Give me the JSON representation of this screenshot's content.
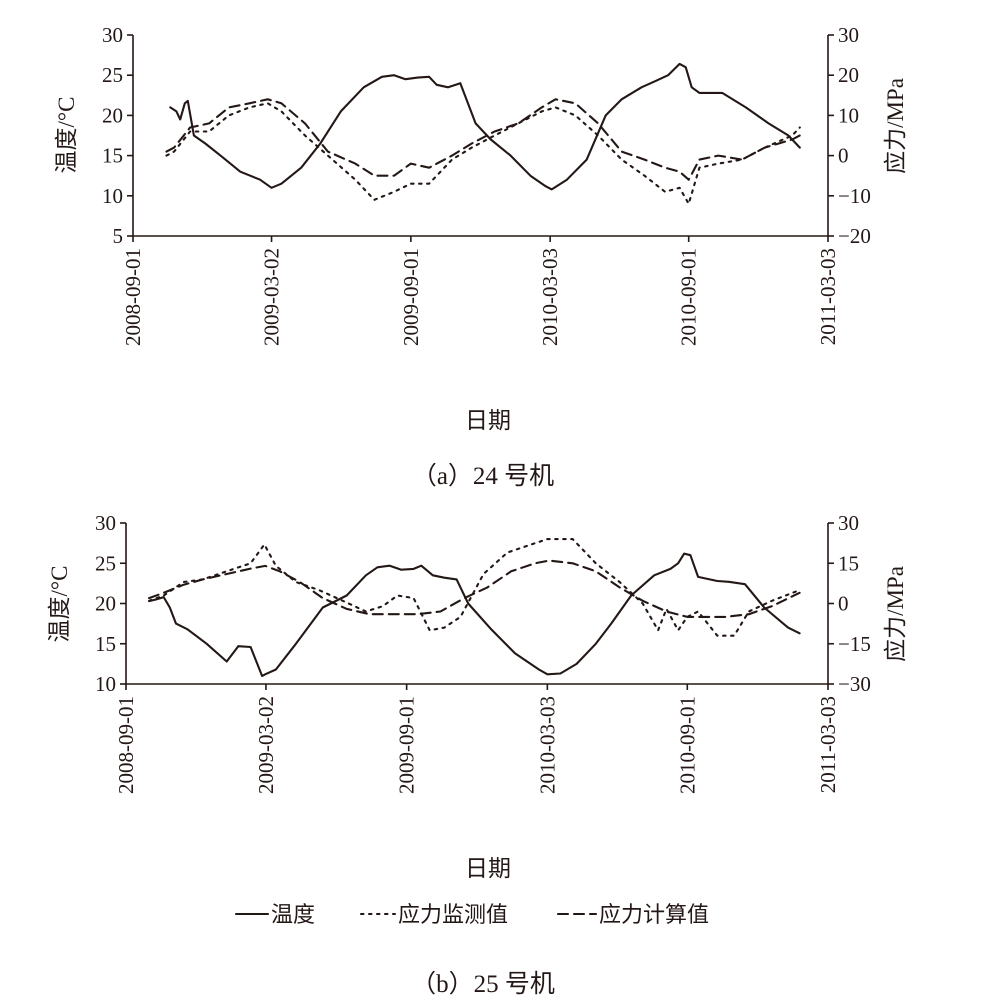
{
  "captions": [
    "（a）24 号机",
    "（b）25 号机"
  ],
  "legend": [
    {
      "label": "温度",
      "series": "temperature"
    },
    {
      "label": "应力监测值",
      "series": "stress_monitored"
    },
    {
      "label": "应力计算值",
      "series": "stress_calculated"
    }
  ],
  "styles": {
    "line_color": "#231815",
    "background": "#ffffff"
  },
  "chart_data": [
    {
      "type": "line",
      "caption": "（a）24 号机",
      "xlabel": "日期",
      "ylabel_left": "温度/°C",
      "ylabel_right": "应力/MPa",
      "x_ticks": [
        "2008-09-01",
        "2009-03-02",
        "2009-09-01",
        "2010-03-03",
        "2010-09-01",
        "2011-03-03"
      ],
      "xlim": [
        "2008-09-01",
        "2011-03-03"
      ],
      "ylim_left": [
        5,
        30
      ],
      "y_ticks_left": [
        5,
        10,
        15,
        20,
        25,
        30
      ],
      "ylim_right": [
        -20,
        30
      ],
      "y_ticks_right": [
        -20,
        -10,
        0,
        10,
        20,
        30
      ],
      "series": [
        {
          "key": "temperature",
          "name": "温度",
          "axis": "left",
          "style": "solid",
          "x": [
            "2008-10-20",
            "2008-10-28",
            "2008-11-02",
            "2008-11-08",
            "2008-11-12",
            "2008-11-20",
            "2008-12-05",
            "2008-12-25",
            "2009-01-20",
            "2009-02-15",
            "2009-03-02",
            "2009-03-15",
            "2009-04-10",
            "2009-05-05",
            "2009-06-01",
            "2009-07-01",
            "2009-07-25",
            "2009-08-10",
            "2009-08-25",
            "2009-09-10",
            "2009-09-25",
            "2009-10-05",
            "2009-10-20",
            "2009-11-05",
            "2009-11-25",
            "2009-12-15",
            "2010-01-10",
            "2010-02-05",
            "2010-02-25",
            "2010-03-05",
            "2010-03-25",
            "2010-04-20",
            "2010-05-15",
            "2010-06-05",
            "2010-07-01",
            "2010-07-20",
            "2010-08-05",
            "2010-08-20",
            "2010-08-28",
            "2010-09-05",
            "2010-09-15",
            "2010-10-15",
            "2010-11-15",
            "2010-12-15",
            "2011-01-10",
            "2011-01-25"
          ],
          "values": [
            21,
            20.5,
            19.5,
            21.5,
            21.8,
            17.5,
            16.5,
            15,
            13,
            12,
            11,
            11.5,
            13.5,
            16.5,
            20.5,
            23.5,
            24.8,
            25,
            24.5,
            24.7,
            24.8,
            23.8,
            23.5,
            24,
            19,
            17,
            15,
            12.5,
            11.2,
            10.8,
            12,
            14.5,
            20,
            22,
            23.5,
            24.3,
            25,
            26.4,
            26,
            23.5,
            22.8,
            22.8,
            21,
            19,
            17.5,
            16
          ],
          "annotations": []
        },
        {
          "key": "stress_monitored",
          "name": "应力监测值",
          "axis": "right",
          "style": "dotted",
          "x": [
            "2008-10-15",
            "2008-10-25",
            "2008-11-15",
            "2008-12-10",
            "2009-01-05",
            "2009-02-01",
            "2009-02-25",
            "2009-03-15",
            "2009-04-15",
            "2009-05-15",
            "2009-06-20",
            "2009-07-15",
            "2009-08-10",
            "2009-09-01",
            "2009-09-25",
            "2009-10-25",
            "2009-11-20",
            "2009-12-20",
            "2010-01-20",
            "2010-02-20",
            "2010-03-10",
            "2010-04-05",
            "2010-05-05",
            "2010-06-05",
            "2010-07-05",
            "2010-08-01",
            "2010-08-20",
            "2010-09-01",
            "2010-09-15",
            "2010-10-10",
            "2010-11-10",
            "2010-12-10",
            "2011-01-15",
            "2011-01-25"
          ],
          "values": [
            0,
            1,
            6,
            6,
            10,
            12,
            13,
            11,
            5,
            0,
            -6,
            -11,
            -9,
            -7,
            -7,
            -1,
            2,
            5,
            8,
            11,
            12,
            10,
            5,
            -1,
            -5,
            -9,
            -8,
            -12,
            -3,
            -2,
            -1,
            2,
            5,
            7
          ],
          "annotations": []
        },
        {
          "key": "stress_calculated",
          "name": "应力计算值",
          "axis": "right",
          "style": "dashed",
          "x": [
            "2008-10-15",
            "2008-10-25",
            "2008-11-15",
            "2008-12-10",
            "2009-01-05",
            "2009-02-01",
            "2009-02-25",
            "2009-03-15",
            "2009-04-15",
            "2009-05-15",
            "2009-06-20",
            "2009-07-15",
            "2009-08-10",
            "2009-09-01",
            "2009-09-25",
            "2009-10-25",
            "2009-11-20",
            "2009-12-20",
            "2010-01-20",
            "2010-02-20",
            "2010-03-10",
            "2010-04-05",
            "2010-05-05",
            "2010-06-05",
            "2010-07-05",
            "2010-08-01",
            "2010-08-20",
            "2010-09-01",
            "2010-09-15",
            "2010-10-10",
            "2010-11-10",
            "2010-12-10",
            "2011-01-15",
            "2011-01-25"
          ],
          "values": [
            1,
            2,
            7,
            8,
            12,
            13,
            14,
            13,
            8,
            1,
            -2,
            -5,
            -5,
            -2,
            -3,
            0,
            3,
            6,
            8,
            12,
            14,
            13,
            8,
            1,
            -1,
            -3,
            -4,
            -6,
            -1,
            0,
            -1,
            2,
            4,
            5
          ],
          "annotations": []
        }
      ]
    },
    {
      "type": "line",
      "caption": "（b）25 号机",
      "xlabel": "日期",
      "ylabel_left": "温度/°C",
      "ylabel_right": "应力/MPa",
      "x_ticks": [
        "2008-09-01",
        "2009-03-02",
        "2009-09-01",
        "2010-03-03",
        "2010-09-01",
        "2011-03-03"
      ],
      "xlim": [
        "2008-09-01",
        "2011-03-03"
      ],
      "ylim_left": [
        10,
        30
      ],
      "y_ticks_left": [
        10,
        15,
        20,
        25,
        30
      ],
      "ylim_right": [
        -30,
        30
      ],
      "y_ticks_right": [
        -30,
        -15,
        0,
        15,
        30
      ],
      "series": [
        {
          "key": "temperature",
          "name": "温度",
          "axis": "left",
          "style": "solid",
          "x": [
            "2008-10-01",
            "2008-10-10",
            "2008-10-20",
            "2008-10-28",
            "2008-11-05",
            "2008-11-20",
            "2008-12-15",
            "2009-01-10",
            "2009-01-25",
            "2009-02-10",
            "2009-02-25",
            "2009-03-01",
            "2009-03-15",
            "2009-04-10",
            "2009-05-15",
            "2009-06-15",
            "2009-07-10",
            "2009-07-25",
            "2009-08-10",
            "2009-08-25",
            "2009-09-10",
            "2009-09-20",
            "2009-10-05",
            "2009-10-20",
            "2009-11-05",
            "2009-11-20",
            "2009-12-20",
            "2010-01-20",
            "2010-02-20",
            "2010-03-03",
            "2010-03-20",
            "2010-04-10",
            "2010-05-05",
            "2010-05-25",
            "2010-06-20",
            "2010-07-20",
            "2010-08-10",
            "2010-08-20",
            "2010-08-28",
            "2010-09-05",
            "2010-09-15",
            "2010-10-10",
            "2010-10-25",
            "2010-11-15",
            "2010-12-10",
            "2011-01-10",
            "2011-01-25"
          ],
          "values": [
            20.3,
            20.5,
            20.8,
            19.5,
            17.5,
            16.8,
            15,
            12.8,
            14.7,
            14.6,
            11,
            11.2,
            11.8,
            15,
            19.5,
            21,
            23.5,
            24.5,
            24.7,
            24.2,
            24.3,
            24.7,
            23.5,
            23.2,
            23,
            20,
            16.8,
            13.8,
            11.8,
            11.2,
            11.3,
            12.5,
            15,
            17.5,
            21,
            23.5,
            24.3,
            25,
            26.2,
            26,
            23.3,
            22.8,
            22.7,
            22.4,
            19.5,
            17,
            16.3
          ],
          "annotations": []
        },
        {
          "key": "stress_monitored",
          "name": "应力监测值",
          "axis": "right",
          "style": "dotted",
          "x": [
            "2008-10-01",
            "2008-10-20",
            "2008-11-15",
            "2008-12-10",
            "2009-01-10",
            "2009-02-10",
            "2009-02-28",
            "2009-03-15",
            "2009-04-10",
            "2009-05-10",
            "2009-06-10",
            "2009-07-10",
            "2009-08-01",
            "2009-08-20",
            "2009-09-10",
            "2009-10-01",
            "2009-10-20",
            "2009-11-10",
            "2009-12-10",
            "2010-01-10",
            "2010-02-10",
            "2010-03-03",
            "2010-04-05",
            "2010-05-05",
            "2010-06-05",
            "2010-07-05",
            "2010-07-25",
            "2010-08-05",
            "2010-08-20",
            "2010-09-01",
            "2010-09-15",
            "2010-10-10",
            "2010-11-01",
            "2010-11-20",
            "2010-12-20",
            "2011-01-25"
          ],
          "values": [
            1,
            3,
            8,
            9,
            12,
            15,
            22,
            14,
            8,
            5,
            1,
            -3,
            -1,
            3,
            2,
            -10,
            -9,
            -5,
            11,
            19,
            22,
            24,
            24,
            15,
            8,
            0,
            -10,
            -2,
            -10,
            -5,
            -3,
            -12,
            -12,
            -3,
            1,
            5
          ],
          "annotations": []
        },
        {
          "key": "stress_calculated",
          "name": "应力计算值",
          "axis": "right",
          "style": "dashed",
          "x": [
            "2008-10-01",
            "2008-10-20",
            "2008-11-15",
            "2008-12-10",
            "2009-01-10",
            "2009-02-10",
            "2009-03-01",
            "2009-03-20",
            "2009-04-15",
            "2009-05-15",
            "2009-06-15",
            "2009-07-15",
            "2009-08-15",
            "2009-09-15",
            "2009-10-15",
            "2009-11-15",
            "2009-12-15",
            "2010-01-15",
            "2010-02-15",
            "2010-03-05",
            "2010-04-05",
            "2010-05-05",
            "2010-06-05",
            "2010-07-05",
            "2010-08-05",
            "2010-09-01",
            "2010-09-20",
            "2010-10-20",
            "2010-11-20",
            "2010-12-20",
            "2011-01-25"
          ],
          "values": [
            2,
            4,
            7,
            9,
            11,
            13,
            14,
            12,
            8,
            2,
            -2,
            -4,
            -4,
            -4,
            -3,
            2,
            6,
            12,
            15,
            16,
            15,
            12,
            6,
            1,
            -3,
            -5,
            -5,
            -5,
            -4,
            -1,
            4
          ],
          "annotations": []
        }
      ]
    }
  ]
}
